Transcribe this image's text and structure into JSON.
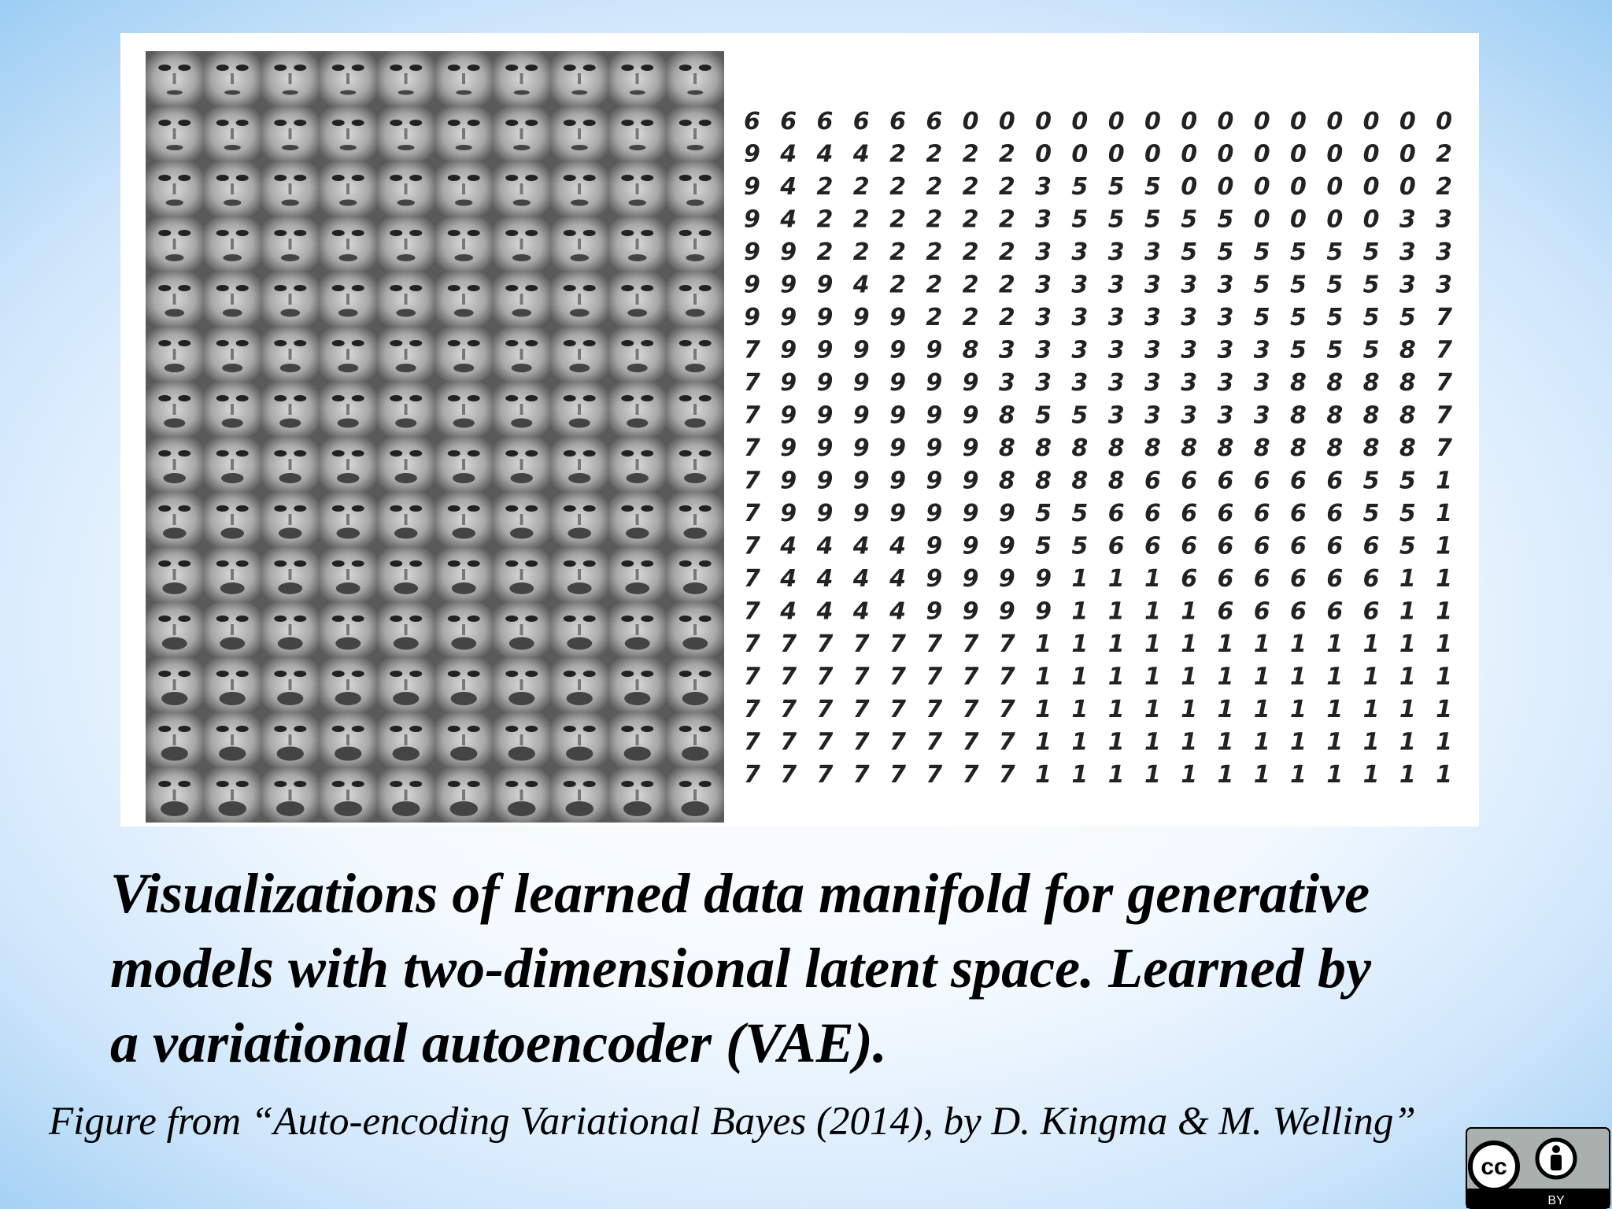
{
  "figure": {
    "digit_rows": [
      "66666600000000000000",
      "94442222000000000002",
      "94222222355500000002",
      "94222222355555000033",
      "99222222333355555533",
      "99942222333333555533",
      "99999222333333555557",
      "79999983333333355587",
      "79999993333333388887",
      "79999998553333388887",
      "79999998888888888887",
      "79999998888666666551",
      "79999999556666666551",
      "74444999556666666651",
      "74444999911166666611",
      "74444999911116666611",
      "77777777111111111111",
      "77777777111111111111",
      "77777777111111111111",
      "77777777111111111111",
      "77777777111111111111"
    ]
  },
  "caption": [
    "Visualizations of learned data manifold for generative",
    "models with two-dimensional latent space. Learned by",
    "a variational autoencoder (VAE)."
  ],
  "citation": "Figure from “Auto-encoding Variational Bayes (2014), by D. Kingma & M. Welling”",
  "license": {
    "cc": "cc",
    "by": "BY"
  }
}
